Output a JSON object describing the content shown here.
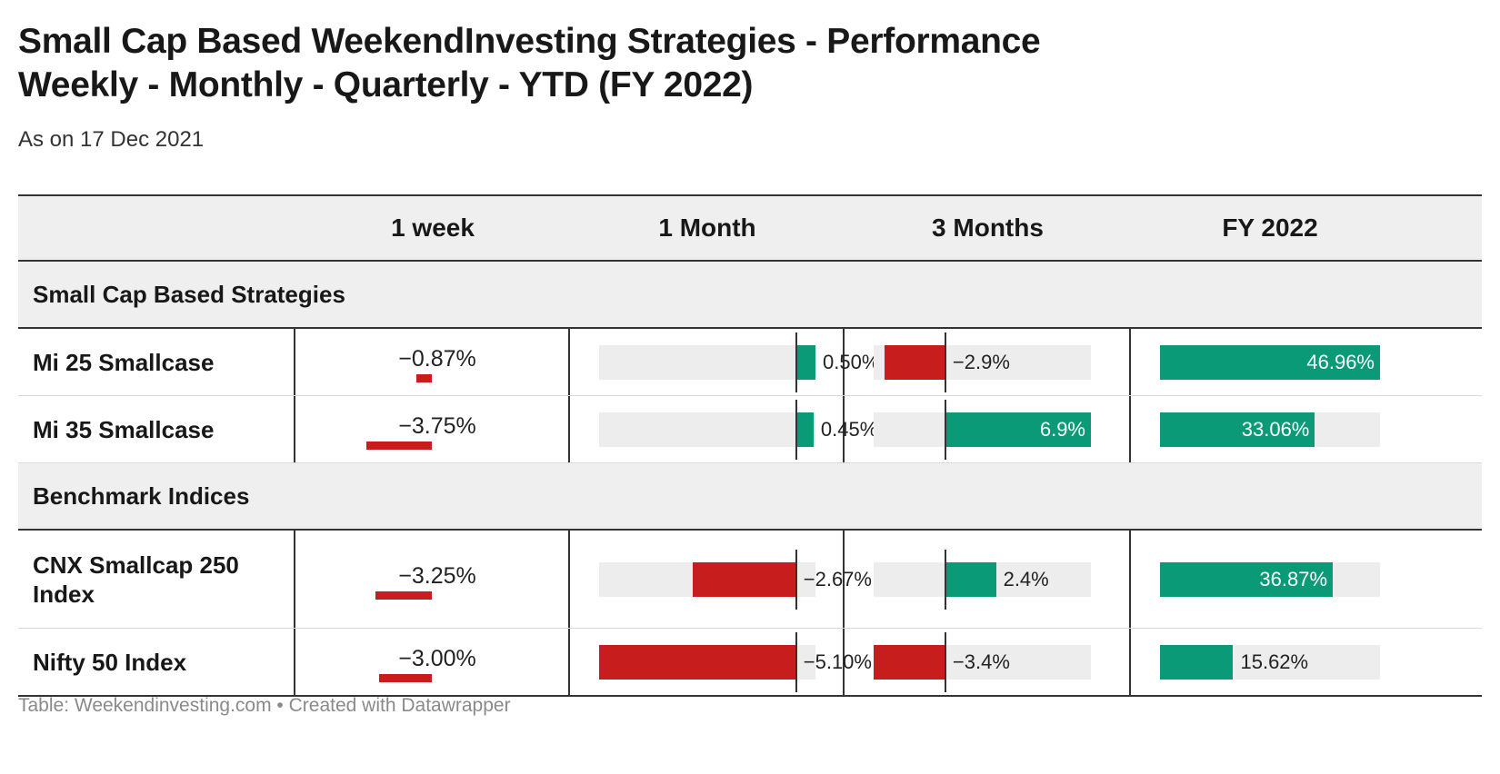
{
  "title_line1": "Small Cap Based WeekendInvesting Strategies - Performance",
  "title_line2": "Weekly - Monthly - Quarterly - YTD (FY 2022)",
  "subtitle": "As on 17 Dec 2021",
  "columns": [
    "1 week",
    "1 Month",
    "3 Months",
    "FY 2022"
  ],
  "colors": {
    "positive": "#0a9a78",
    "negative": "#c71e1d",
    "track": "#ededed"
  },
  "groups": [
    {
      "label": "Small Cap Based Strategies",
      "rows": [
        {
          "name": "Mi 25 Smallcase",
          "week": "−0.87%",
          "month": "0.50%",
          "quarter": "−2.9%",
          "fy": "46.96%"
        },
        {
          "name": "Mi 35 Smallcase",
          "week": "−3.75%",
          "month": "0.45%",
          "quarter": "6.9%",
          "fy": "33.06%"
        }
      ]
    },
    {
      "label": "Benchmark Indices",
      "rows": [
        {
          "name": "CNX Smallcap 250 Index",
          "week": "−3.25%",
          "month": "−2.67%",
          "quarter": "2.4%",
          "fy": "36.87%"
        },
        {
          "name": "Nifty 50 Index",
          "week": "−3.00%",
          "month": "−5.10%",
          "quarter": "−3.4%",
          "fy": "15.62%"
        }
      ]
    }
  ],
  "chart_data": {
    "type": "table",
    "title": "Small Cap Based WeekendInvesting Strategies - Performance Weekly - Monthly - Quarterly - YTD (FY 2022)",
    "subtitle": "As on 17 Dec 2021",
    "columns": [
      "1 week",
      "1 Month",
      "3 Months",
      "FY 2022"
    ],
    "categories": [
      "Mi 25 Smallcase",
      "Mi 35 Smallcase",
      "CNX Smallcap 250 Index",
      "Nifty 50 Index"
    ],
    "series": [
      {
        "name": "1 week",
        "values": [
          -0.87,
          -3.75,
          -3.25,
          -3.0
        ]
      },
      {
        "name": "1 Month",
        "values": [
          0.5,
          0.45,
          -2.67,
          -5.1
        ]
      },
      {
        "name": "3 Months",
        "values": [
          -2.9,
          6.9,
          2.4,
          -3.4
        ]
      },
      {
        "name": "FY 2022",
        "values": [
          46.96,
          33.06,
          36.87,
          15.62
        ]
      }
    ]
  },
  "footer": "Table: Weekendinvesting.com • Created with Datawrapper"
}
